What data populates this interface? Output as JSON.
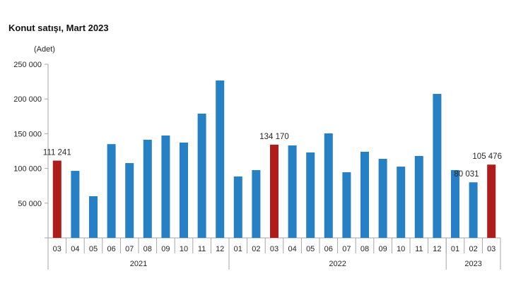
{
  "chart_data": {
    "type": "bar",
    "title": "Konut satışı, Mart 2023",
    "ylabel": "(Adet)",
    "ylim": [
      0,
      250000
    ],
    "yticks": [
      {
        "value": 50000,
        "label": "50 000"
      },
      {
        "value": 100000,
        "label": "100 000"
      },
      {
        "value": 150000,
        "label": "150 000"
      },
      {
        "value": 200000,
        "label": "200 000"
      },
      {
        "value": 250000,
        "label": "250 000"
      }
    ],
    "grid": false,
    "groups": [
      {
        "label": "2021",
        "categories": [
          "03",
          "04",
          "05",
          "06",
          "07",
          "08",
          "09",
          "10",
          "11",
          "12"
        ]
      },
      {
        "label": "2022",
        "categories": [
          "01",
          "02",
          "03",
          "04",
          "05",
          "06",
          "07",
          "08",
          "09",
          "10",
          "11",
          "12"
        ]
      },
      {
        "label": "2023",
        "categories": [
          "01",
          "02",
          "03"
        ]
      }
    ],
    "values": [
      111241,
      96500,
      60000,
      135000,
      107700,
      141300,
      147400,
      137200,
      178900,
      226600,
      88400,
      97600,
      134170,
      133100,
      123000,
      150400,
      94500,
      124000,
      113800,
      102600,
      117900,
      207300,
      97600,
      80031,
      105476
    ],
    "highlight": [
      0,
      12,
      24
    ],
    "data_labels": [
      {
        "index": 0,
        "text": "111 241"
      },
      {
        "index": 12,
        "text": "134 170"
      },
      {
        "index": 23,
        "text": "80 031"
      },
      {
        "index": 24,
        "text": "105 476"
      }
    ],
    "colors": {
      "bar": "#2680c6",
      "highlight": "#b01c1c",
      "axis": "#a6a6a6",
      "text": "#262626"
    }
  }
}
